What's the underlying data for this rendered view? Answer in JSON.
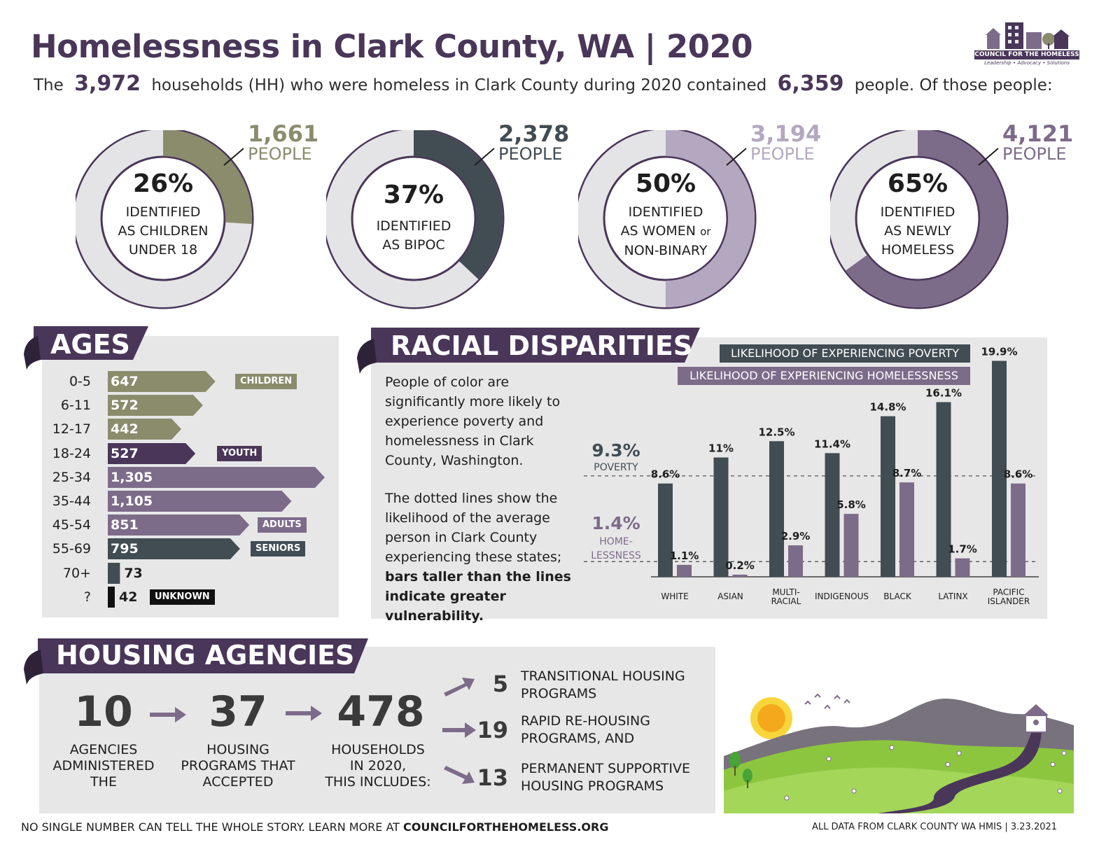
{
  "header": {
    "title": "Homelessness in Clark County, WA | 2020",
    "sub_pre": "The",
    "households": "3,972",
    "sub_mid": "households (HH) who were homeless in Clark County during 2020 contained",
    "people": "6,359",
    "sub_post": "people. Of those people:"
  },
  "logo": {
    "name": "COUNCIL FOR THE HOMELESS",
    "slogan": "Leadership • Advocacy • Solutions"
  },
  "donuts": [
    {
      "pct": "26%",
      "fraction": 0.26,
      "count": "1,661",
      "unit": "PEOPLE",
      "label1": "IDENTIFIED",
      "label2": "AS CHILDREN",
      "label3": "UNDER 18",
      "color": "#8a8c6c"
    },
    {
      "pct": "37%",
      "fraction": 0.37,
      "count": "2,378",
      "unit": "PEOPLE",
      "label1": "IDENTIFIED",
      "label2": "AS BIPOC",
      "label3": "",
      "color": "#414c53"
    },
    {
      "pct": "50%",
      "fraction": 0.5,
      "count": "3,194",
      "unit": "PEOPLE",
      "label1": "IDENTIFIED",
      "label2": "AS WOMEN or",
      "label3": "NON-BINARY",
      "color": "#b3a8bf"
    },
    {
      "pct": "65%",
      "fraction": 0.65,
      "count": "4,121",
      "unit": "PEOPLE",
      "label1": "IDENTIFIED",
      "label2": "AS NEWLY",
      "label3": "HOMELESS",
      "color": "#7d6b8a"
    }
  ],
  "ages": {
    "title": "AGES",
    "rows": [
      {
        "label": "0-5",
        "value": "647",
        "n": 647,
        "color": "#8a8c6c"
      },
      {
        "label": "6-11",
        "value": "572",
        "n": 572,
        "color": "#8a8c6c"
      },
      {
        "label": "12-17",
        "value": "442",
        "n": 442,
        "color": "#8a8c6c"
      },
      {
        "label": "18-24",
        "value": "527",
        "n": 527,
        "color": "#4a3659"
      },
      {
        "label": "25-34",
        "value": "1,305",
        "n": 1305,
        "color": "#7d6b8a"
      },
      {
        "label": "35-44",
        "value": "1,105",
        "n": 1105,
        "color": "#7d6b8a"
      },
      {
        "label": "45-54",
        "value": "851",
        "n": 851,
        "color": "#7d6b8a"
      },
      {
        "label": "55-69",
        "value": "795",
        "n": 795,
        "color": "#414c53"
      },
      {
        "label": "70+",
        "value": "73",
        "n": 73,
        "color": "#414c53"
      },
      {
        "label": "?",
        "value": "42",
        "n": 42,
        "color": "#111111"
      }
    ],
    "tags": [
      {
        "text": "CHILDREN",
        "color": "#8a8c6c"
      },
      {
        "text": "YOUTH",
        "color": "#4a3659"
      },
      {
        "text": "ADULTS",
        "color": "#7d6b8a"
      },
      {
        "text": "SENIORS",
        "color": "#414c53"
      },
      {
        "text": "UNKNOWN",
        "color": "#111111"
      }
    ]
  },
  "racial": {
    "title": "RACIAL DISPARITIES",
    "para1": "People of color are significantly more likely to experience poverty and homelessness in Clark County, Washington.",
    "para2a": "The dotted lines show the likelihood of the average person in Clark County experiencing these states;",
    "para2b": "bars taller than the lines indicate greater vulnerability.",
    "legend_poverty": "LIKELIHOOD OF EXPERIENCING POVERTY",
    "legend_homeless": "LIKELIHOOD OF EXPERIENCING HOMELESSNESS",
    "poverty_line_label": "9.3%",
    "poverty_line_text": "POVERTY",
    "homeless_line_label": "1.4%",
    "homeless_line_text1": "HOME-",
    "homeless_line_text2": "LESSNESS"
  },
  "chart_data": {
    "type": "bar",
    "categories": [
      "WHITE",
      "ASIAN",
      "MULTI-RACIAL",
      "INDIGENOUS",
      "BLACK",
      "LATINX",
      "PACIFIC ISLANDER"
    ],
    "category_lines": [
      [
        "WHITE"
      ],
      [
        "ASIAN"
      ],
      [
        "MULTI-",
        "RACIAL"
      ],
      [
        "INDIGENOUS"
      ],
      [
        "BLACK"
      ],
      [
        "LATINX"
      ],
      [
        "PACIFIC",
        "ISLANDER"
      ]
    ],
    "series": [
      {
        "name": "LIKELIHOOD OF EXPERIENCING POVERTY",
        "values": [
          8.6,
          11,
          12.5,
          11.4,
          14.8,
          16.1,
          19.9
        ],
        "labels": [
          "8.6%",
          "11%",
          "12.5%",
          "11.4%",
          "14.8%",
          "16.1%",
          "19.9%"
        ],
        "color": "#414c53"
      },
      {
        "name": "LIKELIHOOD OF EXPERIENCING HOMELESSNESS",
        "values": [
          1.1,
          0.2,
          2.9,
          5.8,
          8.7,
          1.7,
          8.6
        ],
        "labels": [
          "1.1%",
          "0.2%",
          "2.9%",
          "5.8%",
          "8.7%",
          "1.7%",
          "8.6%"
        ],
        "color": "#7d6b8a"
      }
    ],
    "reference_lines": [
      {
        "value": 9.3
      },
      {
        "value": 1.4
      }
    ],
    "ylim": [
      0,
      20
    ]
  },
  "housing": {
    "title": "HOUSING AGENCIES",
    "agencies": "10",
    "agencies_lbl": [
      "AGENCIES",
      "ADMINISTERED",
      "THE"
    ],
    "programs": "37",
    "programs_lbl": [
      "HOUSING",
      "PROGRAMS THAT",
      "ACCEPTED"
    ],
    "households": "478",
    "households_lbl": [
      "HOUSEHOLDS",
      "IN 2020,",
      "THIS INCLUDES:"
    ],
    "breakdown": [
      {
        "num": "5",
        "text1": "TRANSITIONAL HOUSING",
        "text2": "PROGRAMS"
      },
      {
        "num": "19",
        "text1": "RAPID RE-HOUSING",
        "text2": "PROGRAMS, AND"
      },
      {
        "num": "13",
        "text1": "PERMANENT SUPPORTIVE",
        "text2": "HOUSING PROGRAMS"
      }
    ]
  },
  "footer": {
    "left_text": "NO SINGLE NUMBER CAN TELL THE WHOLE STORY. LEARN MORE AT",
    "left_link": "COUNCILFORTHEHOMELESS.ORG",
    "right": "ALL DATA FROM CLARK COUNTY WA HMIS | 3.23.2021"
  }
}
